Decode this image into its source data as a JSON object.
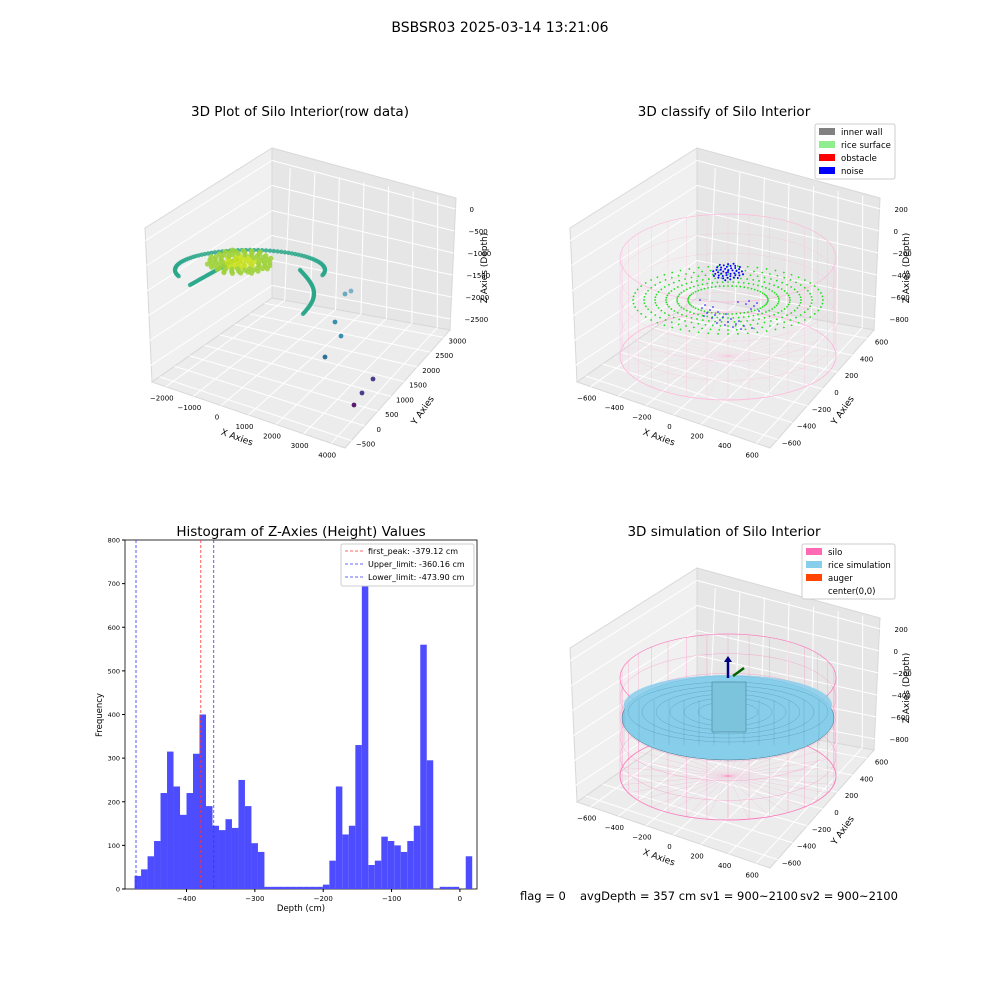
{
  "figure": {
    "suptitle": "BSBSR03 2025-03-14 13:21:06",
    "footer": {
      "flag": "flag = 0",
      "avg_depth": "avgDepth = 357 cm",
      "sv1": "sv1 = 900~2100",
      "sv2": "sv2 = 900~2100"
    }
  },
  "colors": {
    "histogram_bar": "#4d4dff",
    "first_peak_line": "#ff3333",
    "limit_lines": "#3333ff",
    "inner_wall": "#808080",
    "rice_surface": "#90ee90",
    "obstacle": "#ff0000",
    "noise": "#0000ff",
    "silo": "#ff69b4",
    "rice_simulation": "#87ceeb",
    "auger": "#ff4500",
    "wireframe_pink": "#ffb6d9",
    "classified_points_green": "#22dd22",
    "scatter_teal": "#2aa78a",
    "scatter_yellow": "#c8e020"
  },
  "chart_data": [
    {
      "id": "raw",
      "type": "scatter",
      "projection": "3d",
      "title": "3D Plot of Silo Interior(row data)",
      "xlabel": "X Axies",
      "ylabel": "Y Axies",
      "zlabel": "Z Axies (Depth)",
      "x_ticks": [
        "−2000",
        "−1000",
        "0",
        "1000",
        "2000",
        "3000",
        "4000"
      ],
      "y_ticks": [
        "−500",
        "0",
        "500",
        "1000",
        "1500",
        "2000",
        "2500",
        "3000"
      ],
      "z_ticks": [
        "0",
        "−500",
        "−1000",
        "−1500",
        "−2000",
        "−2500"
      ],
      "xlim": [
        -2100,
        4000
      ],
      "ylim": [
        -600,
        3100
      ],
      "zlim": [
        -2800,
        0
      ],
      "colormap": "viridis",
      "grid": true,
      "outliers": [
        {
          "x": 300,
          "y": 1800,
          "z": -2300
        },
        {
          "x": 700,
          "y": 1400,
          "z": -2000
        },
        {
          "x": 3600,
          "y": -100,
          "z": -2500
        },
        {
          "x": 3900,
          "y": 100,
          "z": -2600
        },
        {
          "x": 3500,
          "y": -300,
          "z": -2650
        }
      ]
    },
    {
      "id": "classify",
      "type": "scatter",
      "projection": "3d",
      "title": "3D classify of Silo Interior",
      "xlabel": "X Axies",
      "ylabel": "Y Axies",
      "zlabel": "Z Axies (Depth)",
      "x_ticks": [
        "−600",
        "−400",
        "−200",
        "0",
        "200",
        "400",
        "600"
      ],
      "y_ticks": [
        "−600",
        "−400",
        "−200",
        "0",
        "200",
        "400",
        "600"
      ],
      "z_ticks": [
        "200",
        "0",
        "−200",
        "−400",
        "−600",
        "−800"
      ],
      "xlim": [
        -650,
        650
      ],
      "ylim": [
        -650,
        650
      ],
      "zlim": [
        -900,
        300
      ],
      "grid": true,
      "legend": {
        "placement": "top-right",
        "entries": [
          "inner wall",
          "rice surface",
          "obstacle",
          "noise"
        ]
      }
    },
    {
      "id": "histogram",
      "type": "bar",
      "title": "Histogram of Z-Axies (Height) Values",
      "xlabel": "Depth (cm)",
      "ylabel": "Frequency",
      "x_ticks": [
        "−400",
        "−300",
        "−200",
        "−100",
        "0"
      ],
      "y_ticks": [
        "0",
        "100",
        "200",
        "300",
        "400",
        "500",
        "600",
        "700",
        "800"
      ],
      "xlim": [
        -490,
        25
      ],
      "ylim": [
        0,
        800
      ],
      "bin_width": 9.5,
      "bin_start": -476,
      "values": [
        30,
        45,
        75,
        110,
        220,
        315,
        235,
        170,
        220,
        310,
        400,
        190,
        145,
        135,
        160,
        140,
        250,
        190,
        105,
        85,
        5,
        5,
        5,
        5,
        5,
        5,
        5,
        5,
        5,
        10,
        65,
        235,
        125,
        145,
        330,
        770,
        55,
        65,
        120,
        110,
        100,
        85,
        110,
        145,
        560,
        295,
        0,
        5,
        5,
        5,
        0,
        75
      ],
      "vlines": [
        {
          "label": "first_peak: -379.12 cm",
          "x": -379.12,
          "color": "red"
        },
        {
          "label": "Upper_limit: -360.16 cm",
          "x": -360.16,
          "color": "blue"
        },
        {
          "label": "Lower_limit: -473.90 cm",
          "x": -473.9,
          "color": "blue"
        }
      ],
      "legend": {
        "placement": "top-right"
      }
    },
    {
      "id": "simulation",
      "type": "surface",
      "projection": "3d",
      "title": "3D simulation of Silo Interior",
      "xlabel": "X Axies",
      "ylabel": "Y Axies",
      "zlabel": "Z Axies (Depth)",
      "x_ticks": [
        "−600",
        "−400",
        "−200",
        "0",
        "200",
        "400",
        "600"
      ],
      "y_ticks": [
        "−600",
        "−400",
        "−200",
        "0",
        "200",
        "400",
        "600"
      ],
      "z_ticks": [
        "200",
        "0",
        "−200",
        "−400",
        "−600",
        "−800"
      ],
      "xlim": [
        -650,
        650
      ],
      "ylim": [
        -650,
        650
      ],
      "zlim": [
        -900,
        300
      ],
      "grid": true,
      "legend": {
        "placement": "top-right",
        "entries": [
          "silo",
          "rice simulation",
          "auger",
          "center(0,0)"
        ]
      }
    }
  ]
}
